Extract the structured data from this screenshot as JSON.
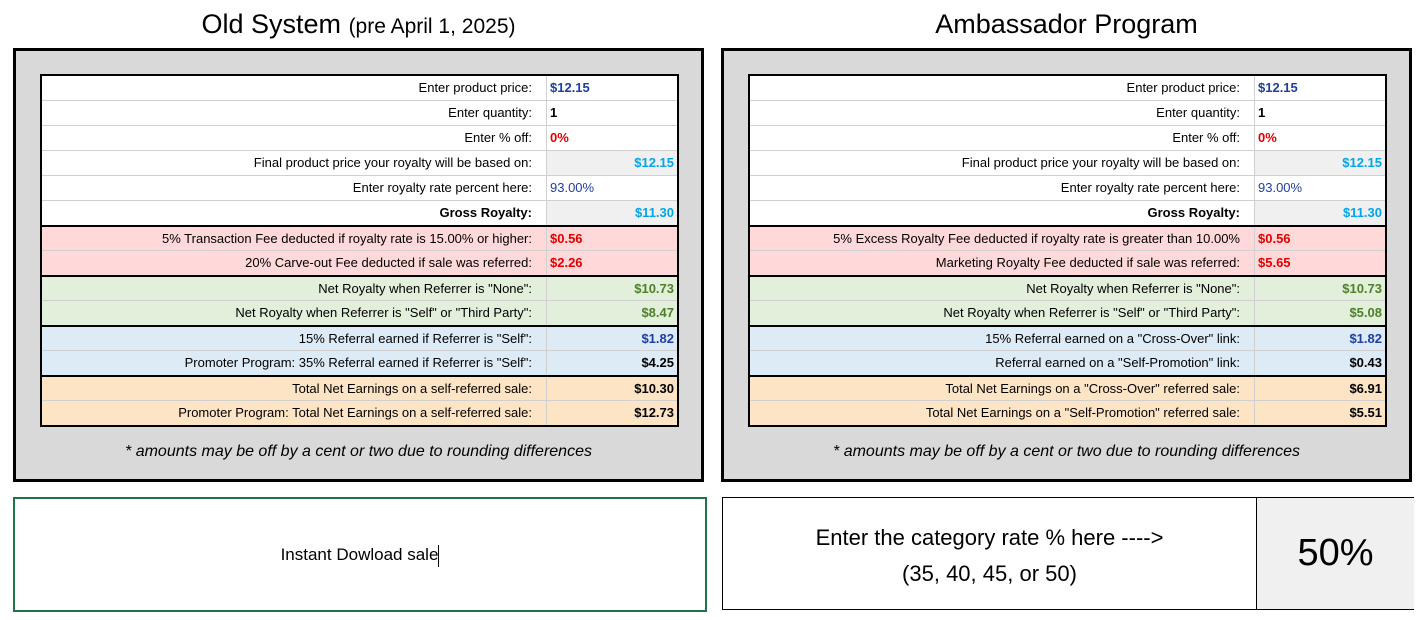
{
  "panels": [
    {
      "title": "Old System",
      "title_note": "(pre April 1, 2025)",
      "rows": [
        [
          "Enter product price:",
          "$12.15"
        ],
        [
          "Enter quantity:",
          "1"
        ],
        [
          "Enter % off:",
          "0%"
        ],
        [
          "Final product price your royalty will be based on:",
          "$12.15"
        ],
        [
          "Enter royalty rate percent here:",
          "93.00%"
        ],
        [
          "Gross Royalty:",
          "$11.30"
        ],
        [
          "5% Transaction Fee deducted if royalty rate is 15.00% or higher:",
          "$0.56"
        ],
        [
          "20% Carve-out Fee deducted if sale was referred:",
          "$2.26"
        ],
        [
          "Net Royalty when Referrer is \"None\":",
          "$10.73"
        ],
        [
          "Net Royalty when Referrer is \"Self\" or \"Third Party\":",
          "$8.47"
        ],
        [
          "15% Referral earned if Referrer is \"Self\":",
          "$1.82"
        ],
        [
          "Promoter Program: 35% Referral earned if Referrer is \"Self\":",
          "$4.25"
        ],
        [
          "Total Net Earnings on a self-referred sale:",
          "$10.30"
        ],
        [
          "Promoter Program: Total Net Earnings on a self-referred sale:",
          "$12.73"
        ]
      ],
      "note": "* amounts may be off by a cent or two due to rounding differences"
    },
    {
      "title": "Ambassador Program",
      "rows": [
        [
          "Enter product price:",
          "$12.15"
        ],
        [
          "Enter quantity:",
          "1"
        ],
        [
          "Enter % off:",
          "0%"
        ],
        [
          "Final product price your royalty will be based on:",
          "$12.15"
        ],
        [
          "Enter royalty rate percent here:",
          "93.00%"
        ],
        [
          "Gross Royalty:",
          "$11.30"
        ],
        [
          "5% Excess Royalty Fee deducted if royalty rate is greater than 10.00%",
          "$0.56"
        ],
        [
          "Marketing Royalty Fee deducted if sale was referred:",
          "$5.65"
        ],
        [
          "Net Royalty when Referrer is \"None\":",
          "$10.73"
        ],
        [
          "Net Royalty when Referrer is \"Self\" or \"Third Party\":",
          "$5.08"
        ],
        [
          "15% Referral earned on a \"Cross-Over\" link:",
          "$1.82"
        ],
        [
          "Referral earned on a \"Self-Promotion\" link:",
          "$0.43"
        ],
        [
          "Total Net Earnings on a \"Cross-Over\" referred sale:",
          "$6.91"
        ],
        [
          "Total Net Earnings on a \"Self-Promotion\" referred sale:",
          "$5.51"
        ]
      ],
      "note": "* amounts may be off by a cent or two due to rounding differences"
    }
  ],
  "sale_type": "Instant Dowload sale",
  "category_rate": {
    "prompt": "Enter the category rate % here ---->",
    "options": "(35, 40, 45, or 50)",
    "value": "50%"
  }
}
